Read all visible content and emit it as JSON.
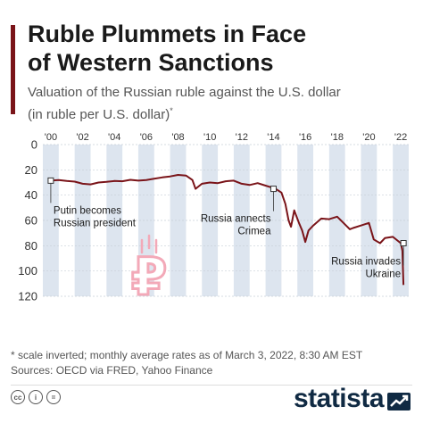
{
  "header": {
    "title_line1": "Ruble Plummets in Face",
    "title_line2": "of Western Sanctions",
    "subtitle_line1": "Valuation of the Russian ruble against the U.S. dollar",
    "subtitle_line2": "(in ruble per U.S. dollar)",
    "subtitle_mark": "*"
  },
  "chart_data": {
    "type": "line",
    "title": "",
    "xlabel": "",
    "ylabel": "",
    "x_tick_labels": [
      "'00",
      "'02",
      "'04",
      "'06",
      "'08",
      "'10",
      "'12",
      "'14",
      "'16",
      "'18",
      "'20",
      "'22"
    ],
    "x_ticks": [
      2000,
      2002,
      2004,
      2006,
      2008,
      2010,
      2012,
      2014,
      2016,
      2018,
      2020,
      2022
    ],
    "y_ticks": [
      0,
      20,
      40,
      60,
      80,
      100,
      120
    ],
    "ylim": [
      0,
      120
    ],
    "xlim": [
      1999.5,
      2022.5
    ],
    "y_inverted": true,
    "grid": "horizontal",
    "line_color": "#7a1419",
    "band_colors": [
      "#dde5ef",
      "#ffffff"
    ],
    "series": [
      {
        "x": [
          2000.0,
          2000.5,
          2001.0,
          2001.5,
          2002.0,
          2002.5,
          2003.0,
          2003.5,
          2004.0,
          2004.5,
          2005.0,
          2005.5,
          2006.0,
          2006.5,
          2007.0,
          2007.5,
          2008.0,
          2008.5,
          2008.9,
          2009.1,
          2009.5,
          2010.0,
          2010.5,
          2011.0,
          2011.5,
          2012.0,
          2012.5,
          2013.0,
          2013.5,
          2013.9,
          2014.2,
          2014.5,
          2014.75,
          2014.95,
          2015.1,
          2015.3,
          2015.6,
          2015.8,
          2016.0,
          2016.2,
          2016.5,
          2017.0,
          2017.5,
          2018.0,
          2018.4,
          2018.8,
          2019.0,
          2019.5,
          2020.0,
          2020.3,
          2020.7,
          2021.0,
          2021.5,
          2022.0,
          2022.1,
          2022.17
        ],
        "values": [
          28.5,
          28.1,
          28.8,
          29.3,
          31.0,
          31.5,
          30.0,
          29.5,
          28.8,
          29.0,
          27.9,
          28.5,
          28.0,
          27.0,
          26.0,
          25.2,
          24.0,
          24.5,
          28.0,
          35.0,
          31.0,
          30.0,
          30.5,
          29.0,
          28.5,
          31.0,
          32.0,
          30.5,
          32.5,
          34.0,
          35.5,
          38.0,
          47.0,
          60.0,
          65.0,
          52.0,
          62.0,
          68.0,
          77.0,
          68.0,
          64.0,
          58.5,
          59.0,
          57.0,
          62.0,
          67.0,
          66.0,
          64.0,
          62.0,
          75.0,
          78.0,
          74.0,
          73.0,
          78.0,
          84.0,
          111.0
        ]
      }
    ],
    "annotations": [
      {
        "x": 2000.0,
        "y": 28.5,
        "line1": "Putin becomes",
        "line2": "Russian president",
        "anchor": "start"
      },
      {
        "x": 2014.0,
        "y": 35.0,
        "line1": "Russia annects",
        "line2": "Crimea",
        "anchor": "end"
      },
      {
        "x": 2022.17,
        "y": 78.0,
        "line1": "Russia invades",
        "line2": "Ukraine",
        "anchor": "end"
      }
    ],
    "marker_color": "#f3a9b8"
  },
  "footer": {
    "footnote_line1": "* scale inverted; monthly average rates as of March 3, 2022, 8:30 AM EST",
    "footnote_line2": "Sources: OECD via FRED, Yahoo Finance",
    "license_icons": [
      "cc-icon",
      "person-icon",
      "equals-icon"
    ],
    "license_icon_glyphs": [
      "cc",
      "i",
      "="
    ],
    "brand": "statista",
    "brand_color": "#102a43"
  }
}
